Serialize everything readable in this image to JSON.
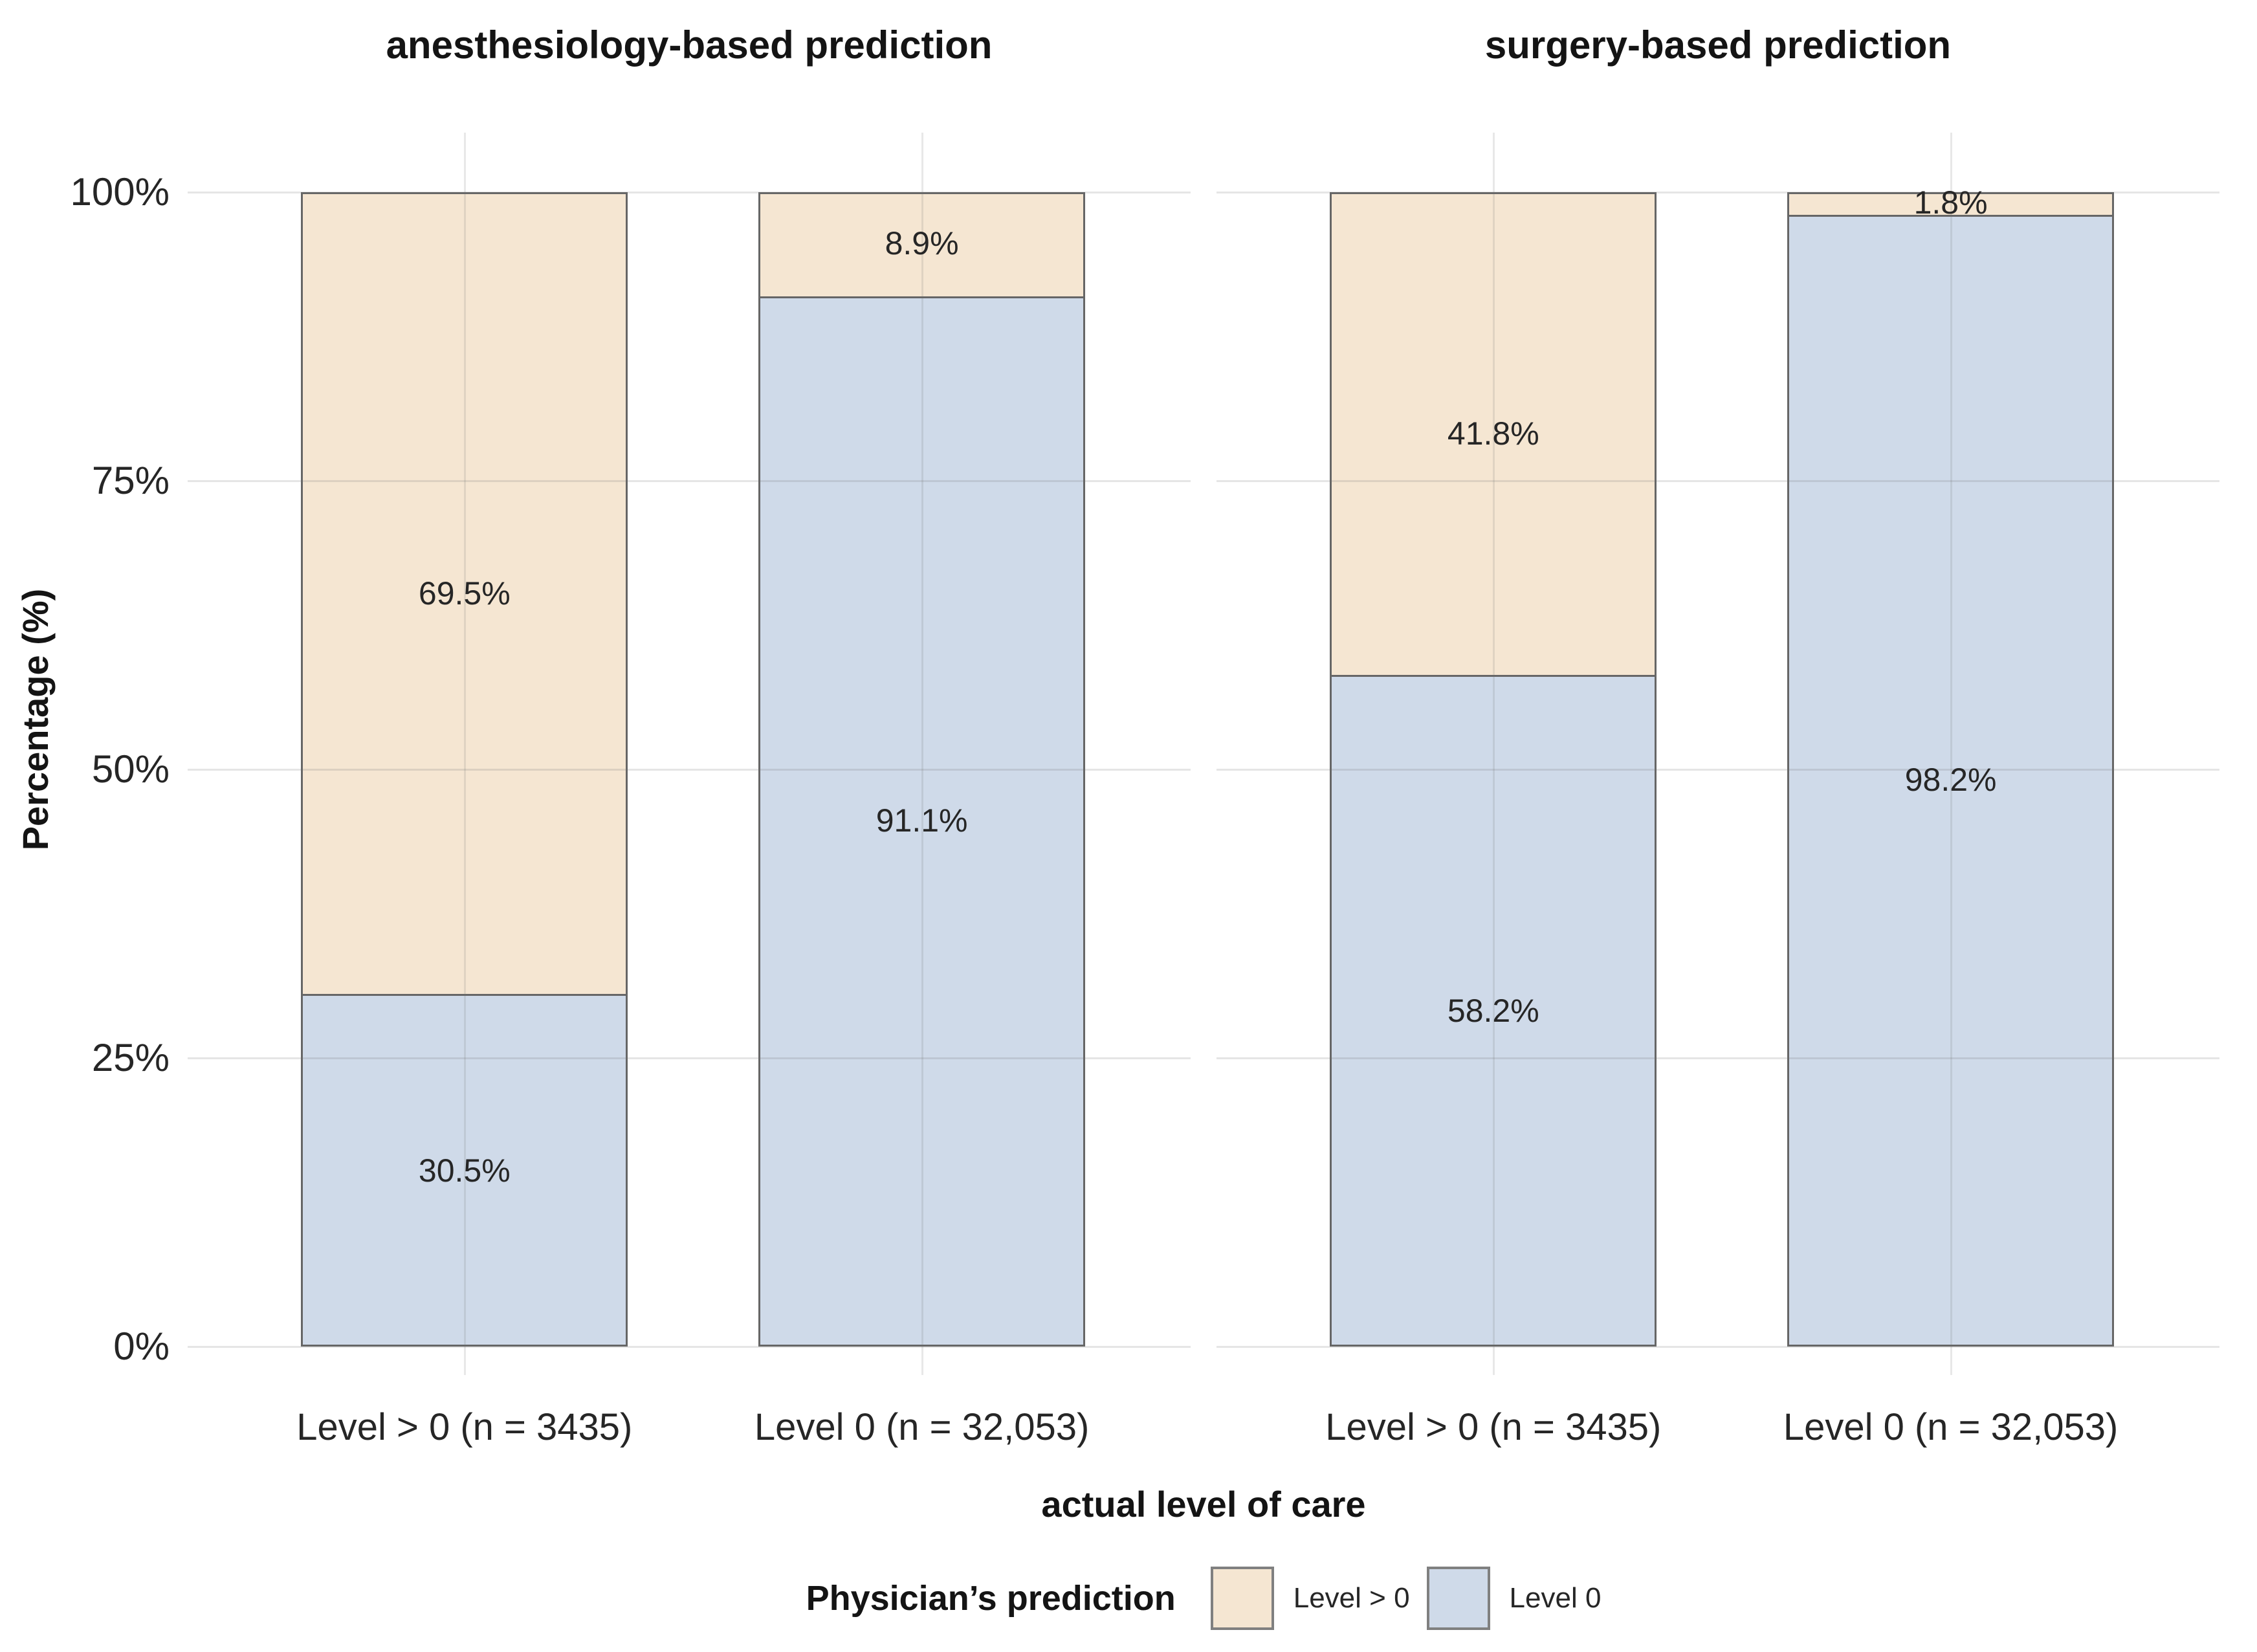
{
  "figure": {
    "ylabel": "Percentage (%)",
    "xlabel": "actual level of care"
  },
  "legend": {
    "title": "Physician’s prediction",
    "entries": [
      {
        "label": "Level > 0",
        "color": "#F5E6D2"
      },
      {
        "label": "Level 0",
        "color": "#CFDAE9"
      }
    ]
  },
  "chart_data": {
    "type": "bar",
    "stacked": true,
    "units": "percent",
    "ylim": [
      0,
      100
    ],
    "yticks": {
      "values": [
        0,
        25,
        50,
        75,
        100
      ],
      "labels": [
        "0%",
        "25%",
        "50%",
        "75%",
        "100%"
      ]
    },
    "ylabel": "Percentage (%)",
    "xlabel": "actual level of care",
    "grid": "light gray horizontal at yticks + vertical at bar centers, no axis lines (minimal theme)",
    "legend_position": "bottom",
    "stack_order": "top-to-bottom",
    "facets": [
      {
        "title": "anesthesiology-based prediction",
        "categories": [
          "Level > 0 (n = 3435)",
          "Level 0 (n = 32,053)"
        ],
        "series": [
          {
            "name": "Level > 0",
            "color": "#F5E6D2",
            "values": [
              69.5,
              8.9
            ],
            "labels": [
              "69.5%",
              "8.9%"
            ]
          },
          {
            "name": "Level 0",
            "color": "#CFDAE9",
            "values": [
              30.5,
              91.1
            ],
            "labels": [
              "30.5%",
              "91.1%"
            ]
          }
        ]
      },
      {
        "title": "surgery-based prediction",
        "categories": [
          "Level > 0 (n = 3435)",
          "Level 0 (n = 32,053)"
        ],
        "series": [
          {
            "name": "Level > 0",
            "color": "#F5E6D2",
            "values": [
              41.8,
              1.8
            ],
            "labels": [
              "41.8%",
              "1.8%"
            ]
          },
          {
            "name": "Level 0",
            "color": "#CFDAE9",
            "values": [
              58.2,
              98.2
            ],
            "labels": [
              "58.2%",
              "98.2%"
            ]
          }
        ]
      }
    ],
    "colors": {
      "segment_border": "#666666",
      "gridline": "#E6E6E6",
      "title_text": "#141414",
      "tick_text": "#262626",
      "background": "#FFFFFF"
    }
  }
}
